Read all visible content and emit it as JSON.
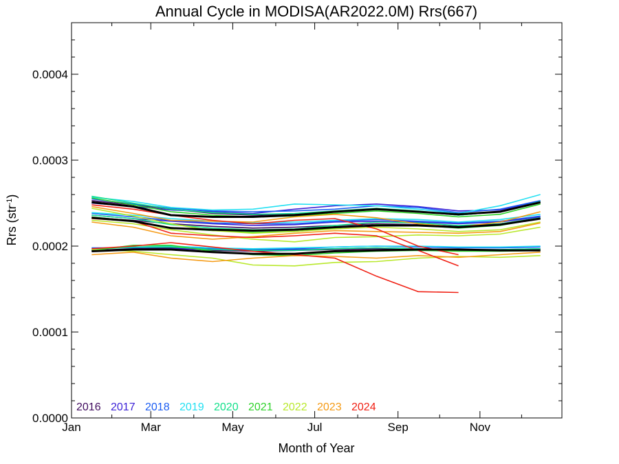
{
  "chart_data": {
    "type": "line",
    "title": "Annual Cycle in MODISA(AR2022.0M) Rrs(667)",
    "xlabel": "Month of Year",
    "ylabel_main": "Rrs (str",
    "ylabel_sup": "-1",
    "ylabel_close": ")",
    "x_ticks": [
      {
        "label": "Jan",
        "x": 0
      },
      {
        "label": "Mar",
        "x": 59
      },
      {
        "label": "May",
        "x": 120
      },
      {
        "label": "Jul",
        "x": 181
      },
      {
        "label": "Sep",
        "x": 243
      },
      {
        "label": "Nov",
        "x": 304
      }
    ],
    "y_ticks": [
      "0.0000",
      "0.0001",
      "0.0002",
      "0.0003",
      "0.0004"
    ],
    "xlim": [
      0,
      365
    ],
    "ylim": [
      0,
      0.00046
    ],
    "grid": false,
    "legend_position": "bottom-left",
    "x_days": [
      15,
      46,
      74,
      105,
      135,
      166,
      196,
      227,
      258,
      288,
      319,
      349
    ],
    "series": [
      {
        "name": "2016",
        "color": "#3f0a5e",
        "lines": [
          [
            0.000253,
            0.000248,
            0.000243,
            0.000238,
            0.000236,
            0.000237,
            0.00024,
            0.000243,
            0.00024,
            0.000236,
            0.00024,
            0.000251
          ],
          [
            0.000233,
            0.00023,
            0.000226,
            0.000223,
            0.000221,
            0.000222,
            0.000224,
            0.000226,
            0.000225,
            0.000223,
            0.000226,
            0.000232
          ],
          [
            0.000195,
            0.000197,
            0.000198,
            0.000195,
            0.000194,
            0.000195,
            0.000196,
            0.000197,
            0.000196,
            0.000195,
            0.000195,
            0.000196
          ]
        ]
      },
      {
        "name": "2017",
        "color": "#3a1fd6",
        "lines": [
          [
            0.00025,
            0.000246,
            0.000242,
            0.00024,
            0.000238,
            0.000243,
            0.000247,
            0.000249,
            0.000246,
            0.000241,
            0.000242,
            0.000252
          ],
          [
            0.000236,
            0.000232,
            0.000229,
            0.000226,
            0.000224,
            0.000225,
            0.000228,
            0.000229,
            0.000228,
            0.000226,
            0.000228,
            0.000234
          ],
          [
            0.000194,
            0.000196,
            0.000197,
            0.000196,
            0.000195,
            0.000196,
            0.000197,
            0.000198,
            0.000197,
            0.000196,
            0.000196,
            0.000197
          ]
        ]
      },
      {
        "name": "2018",
        "color": "#1a5cf2",
        "lines": [
          [
            0.000255,
            0.000249,
            0.000244,
            0.000241,
            0.00024,
            0.000241,
            0.000243,
            0.000247,
            0.000245,
            0.000239,
            0.000243,
            0.000253
          ],
          [
            0.000238,
            0.000234,
            0.00023,
            0.000227,
            0.000226,
            0.000226,
            0.000229,
            0.000231,
            0.000229,
            0.000227,
            0.000229,
            0.000235
          ],
          [
            0.000198,
            0.000198,
            0.000199,
            0.000197,
            0.000196,
            0.000197,
            0.000199,
            0.0002,
            0.000199,
            0.000198,
            0.000198,
            0.000199
          ]
        ]
      },
      {
        "name": "2019",
        "color": "#22e0f2",
        "lines": [
          [
            0.000257,
            0.000252,
            0.000245,
            0.000242,
            0.000243,
            0.000249,
            0.000248,
            0.000247,
            0.000243,
            0.000238,
            0.000247,
            0.00026
          ],
          [
            0.000239,
            0.000236,
            0.000232,
            0.000229,
            0.000227,
            0.000228,
            0.00023,
            0.000232,
            0.000231,
            0.000228,
            0.000231,
            0.000237
          ],
          [
            0.000197,
            0.000199,
            0.0002,
            0.000198,
            0.000197,
            0.000198,
            0.000199,
            0.0002,
            0.0002,
            0.000199,
            0.000199,
            0.0002
          ]
        ]
      },
      {
        "name": "2020",
        "color": "#12e08a",
        "lines": [
          [
            0.000258,
            0.00025,
            0.000243,
            0.000239,
            0.000237,
            0.000238,
            0.000241,
            0.000244,
            0.000241,
            0.000236,
            0.00024,
            0.000252
          ],
          [
            0.000236,
            0.000232,
            0.000225,
            0.000221,
            0.000219,
            0.00022,
            0.000224,
            0.000228,
            0.000227,
            0.000224,
            0.000226,
            0.000233
          ],
          [
            0.000196,
            0.000199,
            0.000199,
            0.000196,
            0.000195,
            0.000195,
            0.000197,
            0.000198,
            0.000197,
            0.000196,
            0.000196,
            0.000197
          ]
        ]
      },
      {
        "name": "2021",
        "color": "#2ed22a",
        "lines": [
          [
            0.000256,
            0.000248,
            0.00024,
            0.000236,
            0.000234,
            0.000235,
            0.000238,
            0.000241,
            0.000238,
            0.000234,
            0.000237,
            0.000249
          ],
          [
            0.000234,
            0.000229,
            0.000221,
            0.000218,
            0.000216,
            0.000217,
            0.000221,
            0.000225,
            0.000224,
            0.000221,
            0.000224,
            0.000232
          ],
          [
            0.000195,
            0.000201,
            0.000201,
            0.000194,
            0.00019,
            0.000189,
            0.000192,
            0.000194,
            0.000195,
            0.000194,
            0.000194,
            0.000195
          ]
        ]
      },
      {
        "name": "2022",
        "color": "#b8e82a",
        "lines": [
          [
            0.000244,
            0.000235,
            0.000226,
            0.000218,
            0.000215,
            0.000217,
            0.00022,
            0.000222,
            0.00022,
            0.000217,
            0.000219,
            0.000228
          ],
          [
            0.00023,
            0.000226,
            0.000219,
            0.000213,
            0.000208,
            0.000205,
            0.00021,
            0.000211,
            0.000213,
            0.000212,
            0.000214,
            0.000222
          ],
          [
            0.000196,
            0.000194,
            0.00019,
            0.000186,
            0.000178,
            0.000177,
            0.000181,
            0.000182,
            0.000186,
            0.000188,
            0.000187,
            0.000189
          ]
        ]
      },
      {
        "name": "2023",
        "color": "#f59a14",
        "lines": [
          [
            0.000246,
            0.000238,
            0.00023,
            0.000229,
            0.000228,
            0.000234,
            0.000237,
            0.000233,
            0.000226,
            0.000222,
            0.000228,
            0.00024
          ],
          [
            0.000228,
            0.000222,
            0.000212,
            0.000208,
            0.000211,
            0.000215,
            0.000218,
            0.000217,
            0.000216,
            0.000215,
            0.000217,
            0.000227
          ],
          [
            0.00019,
            0.000193,
            0.000186,
            0.000182,
            0.000186,
            0.000189,
            0.000188,
            0.000186,
            0.000189,
            0.000187,
            0.00019,
            0.000193
          ]
        ]
      },
      {
        "name": "2024",
        "color": "#f02014",
        "lines": [
          [
            0.000248,
            0.000243,
            0.000236,
            0.00023,
            0.000226,
            0.00023,
            0.000232,
            0.00022,
            0.0002,
            0.00019
          ],
          [
            0.000232,
            0.000229,
            0.000215,
            0.000212,
            0.00021,
            0.000212,
            0.000215,
            0.000212,
            0.000195,
            0.000177
          ],
          [
            0.000197,
            0.0002,
            0.000204,
            0.000199,
            0.000194,
            0.00019,
            0.000186,
            0.000165,
            0.000147,
            0.000146
          ]
        ]
      },
      {
        "name": "",
        "color": "#000000",
        "bold": true,
        "lines": [
          [
            0.000251,
            0.000246,
            0.000236,
            0.000234,
            0.000234,
            0.000236,
            0.00024,
            0.000243,
            0.00024,
            0.000237,
            0.00024,
            0.000251
          ],
          [
            0.000233,
            0.000229,
            0.000221,
            0.000219,
            0.000218,
            0.000219,
            0.000222,
            0.000224,
            0.000224,
            0.000222,
            0.000225,
            0.000232
          ],
          [
            0.000194,
            0.000196,
            0.000196,
            0.000193,
            0.000191,
            0.000191,
            0.000194,
            0.000195,
            0.000196,
            0.000196,
            0.000195,
            0.000195
          ]
        ]
      }
    ]
  }
}
